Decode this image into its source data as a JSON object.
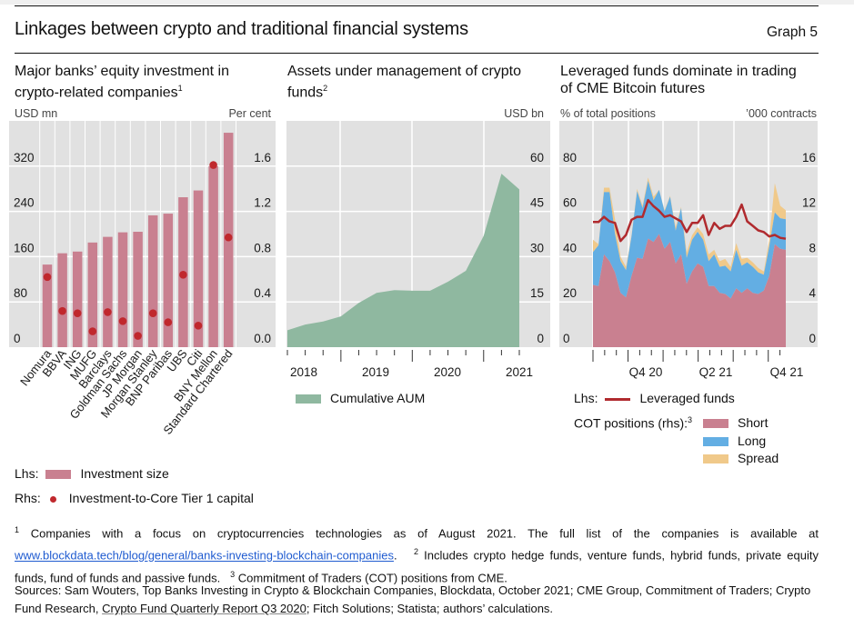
{
  "header": {
    "title": "Linkages between crypto and traditional financial systems",
    "graph_number": "Graph 5"
  },
  "colors": {
    "plot_bg": "#e1e1e1",
    "bar": "#c98090",
    "dot": "#c0282d",
    "aum": "#8fb8a0",
    "short": "#c98090",
    "long": "#63aee3",
    "spread": "#f0c98a",
    "leveraged_line": "#b02a2e"
  },
  "panels": [
    {
      "title_line1": "Major banks’ equity investment in",
      "title_line2": "crypto-related companies",
      "title_sup": "1",
      "unit_left": "USD mn",
      "unit_right": "Per cent"
    },
    {
      "title_line1": "Assets under management of crypto",
      "title_line2": "funds",
      "title_sup": "2",
      "unit_left": "",
      "unit_right": "USD bn"
    },
    {
      "title_line1": "Leveraged funds dominate in trading",
      "title_line2": "of CME Bitcoin futures",
      "title_sup": "",
      "unit_left": "% of total positions",
      "unit_right": "’000 contracts"
    }
  ],
  "legends": {
    "p1_lhs_prefix": "Lhs:",
    "p1_lhs_label": "Investment size",
    "p1_rhs_prefix": "Rhs:",
    "p1_rhs_label": "Investment-to-Core Tier 1 capital",
    "p2_label": "Cumulative AUM",
    "p3_lhs_prefix": "Lhs:",
    "p3_lhs_label": "Leveraged funds",
    "p3_rhs_prefix": "COT positions (rhs):",
    "p3_rhs_sup": "3",
    "p3_short": "Short",
    "p3_long": "Long",
    "p3_spread": "Spread"
  },
  "footnotes": {
    "n1_mark": "1",
    "n1_text": "Companies with a focus on cryptocurrencies technologies as of August 2021. The full list of the companies is available at",
    "n1_link": "www.blockdata.tech/blog/general/banks-investing-blockchain-companies",
    "n1_end": ".",
    "n2_mark": "2",
    "n2_text": "Includes crypto hedge funds, venture funds, hybrid funds, private equity funds, fund of funds and passive funds.",
    "n3_mark": "3",
    "n3_text": "Commitment of Traders (COT) positions from CME."
  },
  "sources": {
    "part1": "Sources: Sam Wouters, Top Banks Investing in Crypto & Blockchain Companies, Blockdata, October 2021; CME Group, Commitment of Traders; Crypto Fund Research, ",
    "underlined": "Crypto Fund Quarterly Report Q3 2020",
    "part2": "; Fitch Solutions; Statista; authors’ calculations."
  },
  "chart_data": [
    {
      "type": "bar",
      "title": "Major banks’ equity investment in crypto-related companies",
      "categories": [
        "Nomura",
        "BBVA",
        "ING",
        "MUFG",
        "Barclays",
        "Goldman Sachs",
        "JP Morgan",
        "Morgan Stanley",
        "BNP Paribas",
        "UBS",
        "Citi",
        "BNY Mellon",
        "Standard Chartered"
      ],
      "series": [
        {
          "name": "Investment size",
          "axis": "left",
          "kind": "bar",
          "values": [
            146,
            166,
            169,
            185,
            195,
            203,
            204,
            233,
            236,
            265,
            277,
            320,
            379
          ]
        },
        {
          "name": "Investment-to-Core Tier 1 capital",
          "axis": "right",
          "kind": "dot",
          "values": [
            0.62,
            0.32,
            0.3,
            0.14,
            0.31,
            0.23,
            0.1,
            0.3,
            0.22,
            0.64,
            0.19,
            1.61,
            0.97
          ]
        }
      ],
      "ylabel_left": "USD mn",
      "ylabel_right": "Per cent",
      "ylim_left": [
        0,
        400
      ],
      "ylim_right": [
        0,
        2.0
      ],
      "yticks_left": [
        "0",
        "80",
        "160",
        "240",
        "320"
      ],
      "yticks_right": [
        "0.0",
        "0.4",
        "0.8",
        "1.2",
        "1.6"
      ],
      "grid": true,
      "legend": "bottom"
    },
    {
      "type": "area",
      "title": "Assets under management of crypto funds",
      "x": [
        "Q2 2018",
        "Q3 2018",
        "Q4 2018",
        "Q1 2019",
        "Q2 2019",
        "Q3 2019",
        "Q4 2019",
        "Q1 2020",
        "Q2 2020",
        "Q3 2020",
        "Q4 2020",
        "Q1 2021",
        "Q2 2021",
        "Q3 2021"
      ],
      "series": [
        {
          "name": "Cumulative AUM",
          "values": [
            5.6,
            7.5,
            8.5,
            10.2,
            14.7,
            18.0,
            18.9,
            18.7,
            18.7,
            21.7,
            25.3,
            36.9,
            57.5,
            52.3
          ]
        }
      ],
      "ylabel_right": "USD bn",
      "ylim": [
        0,
        75
      ],
      "yticks": [
        "0",
        "15",
        "30",
        "45",
        "60"
      ],
      "xtick_labels": [
        "2018",
        "2019",
        "2020",
        "2021"
      ],
      "grid": true,
      "legend": "bottom"
    },
    {
      "type": "area",
      "title": "Leveraged funds dominate in trading of CME Bitcoin futures",
      "x_start": "Aug 2020",
      "x_end": "Nov 2021",
      "xtick_labels": [
        "Q4 20",
        "Q2 21",
        "Q4 21"
      ],
      "series": [
        {
          "name": "Short",
          "axis": "right",
          "kind": "stacked-area",
          "values": [
            5.5,
            5.4,
            8.2,
            7.6,
            6.6,
            4.8,
            4.4,
            6.3,
            7.9,
            7.8,
            9.6,
            9.3,
            10.0,
            8.7,
            9.3,
            7.4,
            8.2,
            5.6,
            6.7,
            7.4,
            7.1,
            5.4,
            5.4,
            4.8,
            4.7,
            4.3,
            5.2,
            4.8,
            5.2,
            4.8,
            4.7,
            5.0,
            6.3,
            9.1,
            8.7,
            8.6
          ]
        },
        {
          "name": "Long",
          "axis": "right",
          "kind": "stacked-area",
          "values": [
            2.9,
            3.6,
            5.5,
            6.1,
            3.4,
            2.8,
            2.4,
            3.5,
            5.9,
            4.5,
            5.1,
            3.7,
            3.9,
            3.3,
            4.0,
            2.9,
            4.1,
            2.3,
            2.8,
            2.8,
            2.4,
            2.2,
            2.8,
            2.3,
            2.5,
            2.4,
            3.4,
            2.4,
            2.3,
            2.3,
            1.9,
            1.4,
            2.6,
            2.8,
            2.7,
            2.7
          ]
        },
        {
          "name": "Spread",
          "axis": "right",
          "kind": "stacked-area",
          "values": [
            1.1,
            0.1,
            0.4,
            0.4,
            1.3,
            0.4,
            0.3,
            0.1,
            0.2,
            0.2,
            0.3,
            0.3,
            0.0,
            0.1,
            0.1,
            0.3,
            0.1,
            0.5,
            0.4,
            0.4,
            0.5,
            0.6,
            0.4,
            0.5,
            0.6,
            0.4,
            0.6,
            0.6,
            0.4,
            0.4,
            0.4,
            0.3,
            0.6,
            2.6,
            1.1,
            0.8
          ]
        },
        {
          "name": "Leveraged funds",
          "axis": "left",
          "kind": "line",
          "values": [
            55.3,
            55.3,
            57.6,
            55.6,
            54.9,
            46.9,
            49.6,
            56.3,
            57.6,
            57.6,
            65.0,
            62.3,
            60.3,
            57.6,
            58.3,
            56.9,
            55.6,
            50.9,
            54.9,
            54.9,
            58.3,
            49.6,
            54.9,
            52.3,
            53.6,
            53.6,
            57.6,
            63.0,
            55.6,
            53.6,
            51.6,
            50.9,
            48.9,
            49.6,
            48.3,
            47.9
          ]
        }
      ],
      "ylabel_left": "% of total positions",
      "ylabel_right": "’000 contracts",
      "ylim_left": [
        0,
        100
      ],
      "ylim_right": [
        0,
        20
      ],
      "yticks_left": [
        "0",
        "20",
        "40",
        "60",
        "80"
      ],
      "yticks_right": [
        "0",
        "4",
        "8",
        "12",
        "16"
      ],
      "grid": true,
      "legend": "bottom"
    }
  ]
}
